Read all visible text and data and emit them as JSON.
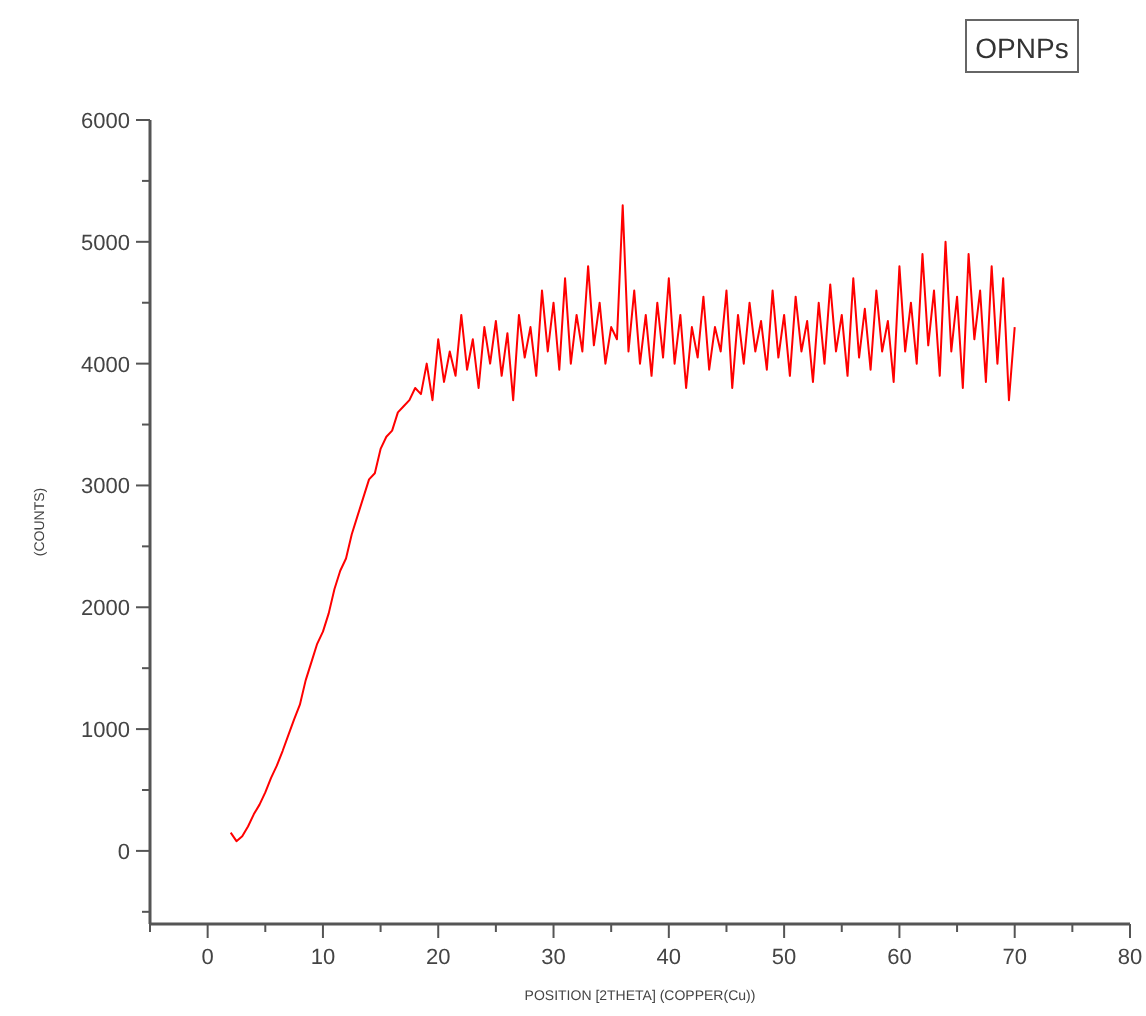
{
  "chart_data": {
    "type": "line",
    "title": "OPNPs",
    "xlabel": "POSITION [2THETA] (COPPER(Cu))",
    "ylabel": "(COUNTS)",
    "xlim": [
      -5,
      80
    ],
    "ylim": [
      -600,
      6000
    ],
    "xticks": [
      {
        "value": -5,
        "label": null
      },
      0,
      {
        "value": 5,
        "label": null
      },
      10,
      {
        "value": 15,
        "label": null
      },
      20,
      {
        "value": 25,
        "label": null
      },
      30,
      {
        "value": 35,
        "label": null
      },
      40,
      {
        "value": 45,
        "label": null
      },
      50,
      {
        "value": 55,
        "label": null
      },
      60,
      {
        "value": 65,
        "label": null
      },
      70,
      {
        "value": 75,
        "label": null
      },
      80
    ],
    "yticks": [
      {
        "value": -500,
        "label": null
      },
      0,
      {
        "value": 500,
        "label": null
      },
      1000,
      {
        "value": 1500,
        "label": null
      },
      2000,
      {
        "value": 2500,
        "label": null
      },
      3000,
      {
        "value": 3500,
        "label": null
      },
      4000,
      {
        "value": 4500,
        "label": null
      },
      5000,
      {
        "value": 5500,
        "label": null
      },
      6000
    ],
    "grid": false,
    "marker": "none",
    "line_style": "solid",
    "series": [
      {
        "color": "#ff0000",
        "x": [
          2,
          2.5,
          3,
          3.5,
          4,
          4.5,
          5,
          5.5,
          6,
          6.5,
          7,
          7.5,
          8,
          8.5,
          9,
          9.5,
          10,
          10.5,
          11,
          11.5,
          12,
          12.5,
          13,
          13.5,
          14,
          14.5,
          15,
          15.5,
          16,
          16.5,
          17,
          17.5,
          18,
          18.5,
          19,
          19.5,
          20,
          20.5,
          21,
          21.5,
          22,
          22.5,
          23,
          23.5,
          24,
          24.5,
          25,
          25.5,
          26,
          26.5,
          27,
          27.5,
          28,
          28.5,
          29,
          29.5,
          30,
          30.5,
          31,
          31.5,
          32,
          32.5,
          33,
          33.5,
          34,
          34.5,
          35,
          35.5,
          36,
          36.5,
          37,
          37.5,
          38,
          38.5,
          39,
          39.5,
          40,
          40.5,
          41,
          41.5,
          42,
          42.5,
          43,
          43.5,
          44,
          44.5,
          45,
          45.5,
          46,
          46.5,
          47,
          47.5,
          48,
          48.5,
          49,
          49.5,
          50,
          50.5,
          51,
          51.5,
          52,
          52.5,
          53,
          53.5,
          54,
          54.5,
          55,
          55.5,
          56,
          56.5,
          57,
          57.5,
          58,
          58.5,
          59,
          59.5,
          60,
          60.5,
          61,
          61.5,
          62,
          62.5,
          63,
          63.5,
          64,
          64.5,
          65,
          65.5,
          66,
          66.5,
          67,
          67.5,
          68,
          68.5,
          69,
          69.5,
          70
        ],
        "values": [
          150,
          80,
          120,
          200,
          300,
          380,
          480,
          600,
          700,
          820,
          950,
          1080,
          1200,
          1400,
          1550,
          1700,
          1800,
          1950,
          2150,
          2300,
          2400,
          2600,
          2750,
          2900,
          3050,
          3100,
          3300,
          3400,
          3450,
          3600,
          3650,
          3700,
          3800,
          3750,
          4000,
          3700,
          4200,
          3850,
          4100,
          3900,
          4400,
          3950,
          4200,
          3800,
          4300,
          4000,
          4350,
          3900,
          4250,
          3700,
          4400,
          4050,
          4300,
          3900,
          4600,
          4100,
          4500,
          3950,
          4700,
          4000,
          4400,
          4100,
          4800,
          4150,
          4500,
          4000,
          4300,
          4200,
          5300,
          4100,
          4600,
          4000,
          4400,
          3900,
          4500,
          4050,
          4700,
          4000,
          4400,
          3800,
          4300,
          4050,
          4550,
          3950,
          4300,
          4100,
          4600,
          3800,
          4400,
          4000,
          4500,
          4100,
          4350,
          3950,
          4600,
          4050,
          4400,
          3900,
          4550,
          4100,
          4350,
          3850,
          4500,
          4000,
          4650,
          4100,
          4400,
          3900,
          4700,
          4050,
          4450,
          3950,
          4600,
          4100,
          4350,
          3850,
          4800,
          4100,
          4500,
          4000,
          4900,
          4150,
          4600,
          3900,
          5000,
          4100,
          4550,
          3800,
          4900,
          4200,
          4600,
          3850,
          4800,
          4000,
          4700,
          3700,
          4300
        ]
      }
    ]
  }
}
